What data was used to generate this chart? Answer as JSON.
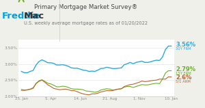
{
  "title": "Primary Mortgage Market Survey®",
  "subtitle": "U.S. weekly average mortgage rates as of 01/20/2022",
  "logo_color": "#00a0e0",
  "logo_green": "#6ab023",
  "title_color": "#444444",
  "subtitle_color": "#777777",
  "background_color": "#f0f0eb",
  "x_labels": [
    "25. Jan",
    "5. Apr",
    "14. Jun",
    "21. Aug",
    "1. Nov",
    "10. Jan"
  ],
  "x_positions": [
    0,
    10,
    20,
    30,
    40,
    51
  ],
  "ylim": [
    2.0,
    3.75
  ],
  "yticks": [
    2.0,
    2.5,
    3.0,
    3.5
  ],
  "ytick_labels": [
    "2.00%",
    "2.50%",
    "3.00%",
    "3.50%"
  ],
  "line_30y_color": "#29aae1",
  "line_15y_color": "#6ab023",
  "line_arm_color": "#c0622a",
  "label_30y": "3.56%",
  "label_15y": "2.79%",
  "label_arm": "2.6%",
  "sublabel_30y": "30Y FRM",
  "sublabel_15y": "15Y FRM",
  "sublabel_arm": "5/1 ARM",
  "n_points": 52,
  "rate_30y": [
    2.77,
    2.73,
    2.73,
    2.77,
    2.8,
    2.97,
    3.08,
    3.13,
    3.09,
    3.04,
    3.04,
    3.02,
    2.97,
    2.97,
    2.98,
    2.96,
    2.93,
    2.88,
    2.87,
    2.87,
    2.84,
    2.81,
    2.8,
    2.77,
    2.78,
    2.77,
    2.81,
    2.86,
    2.87,
    2.9,
    2.88,
    2.86,
    2.86,
    2.87,
    2.88,
    2.98,
    3.01,
    3.05,
    3.01,
    3.05,
    3.07,
    3.09,
    3.05,
    3.05,
    3.07,
    3.1,
    3.12,
    3.11,
    3.22,
    3.45,
    3.56,
    3.56
  ],
  "rate_15y": [
    2.21,
    2.19,
    2.2,
    2.21,
    2.24,
    2.4,
    2.48,
    2.51,
    2.46,
    2.4,
    2.38,
    2.34,
    2.29,
    2.29,
    2.31,
    2.3,
    2.27,
    2.23,
    2.22,
    2.22,
    2.21,
    2.2,
    2.16,
    2.15,
    2.14,
    2.12,
    2.14,
    2.19,
    2.21,
    2.23,
    2.22,
    2.19,
    2.2,
    2.22,
    2.23,
    2.28,
    2.3,
    2.3,
    2.27,
    2.3,
    2.33,
    2.36,
    2.35,
    2.35,
    2.37,
    2.39,
    2.4,
    2.39,
    2.53,
    2.72,
    2.79,
    2.79
  ],
  "rate_arm": [
    2.18,
    2.18,
    2.19,
    2.22,
    2.26,
    2.39,
    2.46,
    2.5,
    2.43,
    2.35,
    2.3,
    2.24,
    2.22,
    2.2,
    2.21,
    2.22,
    2.2,
    2.17,
    2.17,
    2.14,
    2.1,
    2.07,
    2.05,
    2.04,
    2.07,
    2.07,
    2.09,
    2.13,
    2.15,
    2.17,
    2.17,
    2.17,
    2.2,
    2.22,
    2.23,
    2.3,
    2.33,
    2.36,
    2.37,
    2.4,
    2.43,
    2.47,
    2.45,
    2.46,
    2.48,
    2.49,
    2.5,
    2.53,
    2.53,
    2.53,
    2.6,
    2.6
  ]
}
